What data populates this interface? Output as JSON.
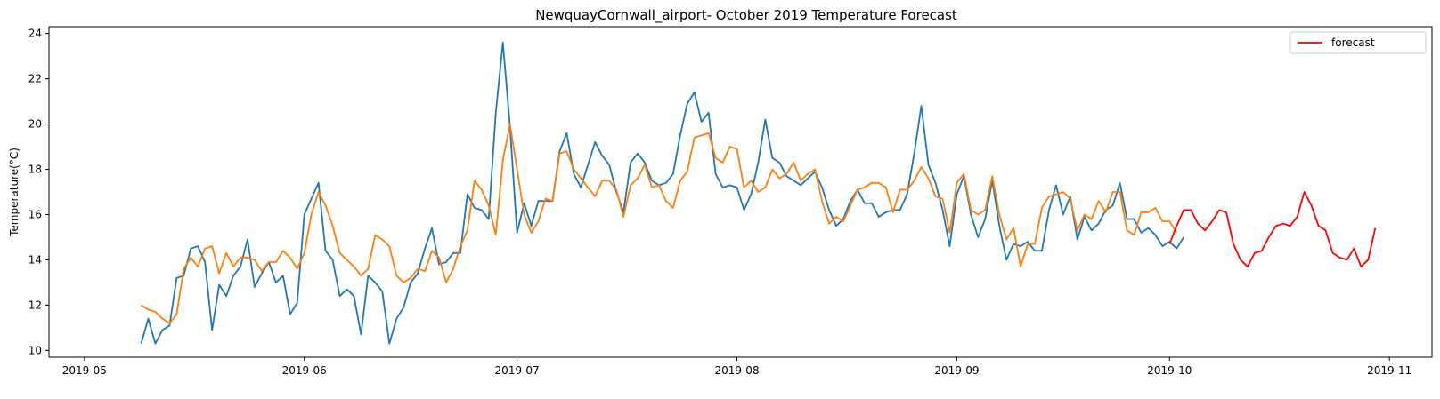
{
  "chart_data": {
    "type": "line",
    "title": "NewquayCornwall_airport- October 2019 Temperature Forecast",
    "xlabel": "",
    "ylabel": "Temperature(°C)",
    "xlim": [
      "2019-04-26",
      "2019-11-07"
    ],
    "ylim": [
      9.7,
      24.3
    ],
    "x_ticks": [
      "2019-05",
      "2019-06",
      "2019-07",
      "2019-08",
      "2019-09",
      "2019-10",
      "2019-11"
    ],
    "x_tick_dates": [
      "2019-05-01",
      "2019-06-01",
      "2019-07-01",
      "2019-08-01",
      "2019-09-01",
      "2019-10-01",
      "2019-11-01"
    ],
    "y_ticks": [
      10,
      12,
      14,
      16,
      18,
      20,
      22,
      24
    ],
    "grid": false,
    "legend_position": "top-right",
    "series": [
      {
        "color": "#1f77b4",
        "start_date": "2019-05-09",
        "values": [
          10.3,
          11.4,
          10.3,
          10.9,
          11.1,
          13.2,
          13.3,
          14.5,
          14.6,
          13.9,
          10.9,
          12.9,
          12.4,
          13.3,
          13.7,
          14.9,
          12.8,
          13.4,
          13.9,
          13.0,
          13.3,
          11.6,
          12.1,
          16.0,
          16.7,
          17.4,
          14.4,
          14.0,
          12.4,
          12.7,
          12.4,
          10.7,
          13.3,
          13.0,
          12.6,
          10.3,
          11.4,
          11.9,
          13.0,
          13.4,
          14.5,
          15.4,
          13.8,
          13.9,
          14.3,
          14.3,
          16.9,
          16.3,
          16.2,
          15.8,
          20.5,
          23.6,
          19.9,
          15.2,
          16.5,
          15.5,
          16.6,
          16.6,
          16.6,
          18.8,
          19.6,
          17.8,
          17.2,
          18.2,
          19.2,
          18.6,
          18.2,
          17.0,
          16.1,
          18.3,
          18.7,
          18.3,
          17.5,
          17.3,
          17.4,
          17.8,
          19.5,
          20.9,
          21.4,
          20.1,
          20.5,
          17.8,
          17.2,
          17.3,
          17.2,
          16.2,
          16.9,
          18.3,
          20.2,
          18.5,
          18.3,
          17.7,
          17.5,
          17.3,
          17.6,
          17.9,
          17.2,
          16.2,
          15.5,
          15.8,
          16.6,
          17.1,
          16.5,
          16.5,
          15.9,
          16.1,
          16.2,
          16.2,
          16.9,
          18.7,
          20.8,
          18.2,
          17.4,
          16.2,
          14.6,
          16.9,
          17.7,
          16.0,
          15.0,
          15.8,
          17.5,
          15.5,
          14.0,
          14.7,
          14.6,
          14.8,
          14.4,
          14.4,
          16.2,
          17.3,
          16.0,
          16.8,
          14.9,
          15.9,
          15.3,
          15.6,
          16.2,
          16.4,
          17.4,
          15.8,
          15.8,
          15.2,
          15.4,
          15.1,
          14.6,
          14.8,
          14.5,
          15.0
        ]
      },
      {
        "color": "#ff7f0e",
        "start_date": "2019-05-09",
        "values": [
          12.0,
          11.8,
          11.7,
          11.4,
          11.2,
          11.6,
          13.6,
          14.1,
          13.7,
          14.5,
          14.6,
          13.4,
          14.3,
          13.7,
          14.1,
          14.1,
          14.0,
          13.5,
          13.9,
          13.9,
          14.4,
          14.1,
          13.6,
          14.3,
          16.0,
          17.0,
          16.4,
          15.5,
          14.3,
          14.0,
          13.7,
          13.3,
          13.6,
          15.1,
          14.9,
          14.6,
          13.3,
          13.0,
          13.2,
          13.6,
          13.5,
          14.4,
          14.1,
          13.0,
          13.6,
          14.6,
          15.3,
          17.5,
          17.1,
          16.4,
          15.1,
          18.4,
          20.0,
          18.0,
          16.0,
          15.2,
          15.7,
          16.7,
          16.6,
          18.7,
          18.8,
          18.0,
          17.6,
          17.2,
          16.8,
          17.5,
          17.5,
          17.1,
          15.9,
          17.3,
          17.6,
          18.2,
          17.2,
          17.3,
          16.6,
          16.3,
          17.5,
          17.9,
          19.4,
          19.5,
          19.6,
          18.5,
          18.3,
          19.0,
          18.9,
          17.2,
          17.5,
          17.0,
          17.2,
          18.0,
          17.6,
          17.8,
          18.3,
          17.5,
          17.8,
          18.0,
          16.6,
          15.6,
          15.9,
          15.7,
          16.4,
          17.1,
          17.2,
          17.4,
          17.4,
          17.2,
          16.1,
          17.1,
          17.1,
          17.5,
          18.1,
          17.6,
          16.8,
          16.7,
          15.2,
          17.4,
          17.8,
          16.2,
          16.0,
          16.2,
          17.7,
          16.0,
          14.9,
          15.4,
          13.7,
          14.7,
          14.7,
          16.3,
          16.8,
          16.9,
          17.0,
          16.7,
          15.3,
          16.0,
          15.8,
          16.6,
          16.1,
          17.0,
          17.0,
          15.3,
          15.1,
          16.1,
          16.1,
          16.3,
          15.7,
          15.7,
          15.2
        ]
      },
      {
        "name": "forecast",
        "color": "#ff0000",
        "start_date": "2019-10-01",
        "values": [
          14.7,
          15.5,
          16.2,
          16.2,
          15.6,
          15.3,
          15.7,
          16.2,
          16.1,
          14.7,
          14.0,
          13.7,
          14.3,
          14.4,
          15.0,
          15.5,
          15.6,
          15.5,
          15.9,
          17.0,
          16.4,
          15.5,
          15.3,
          14.3,
          14.1,
          14.0,
          14.5,
          13.7,
          14.0,
          15.4
        ]
      }
    ]
  }
}
